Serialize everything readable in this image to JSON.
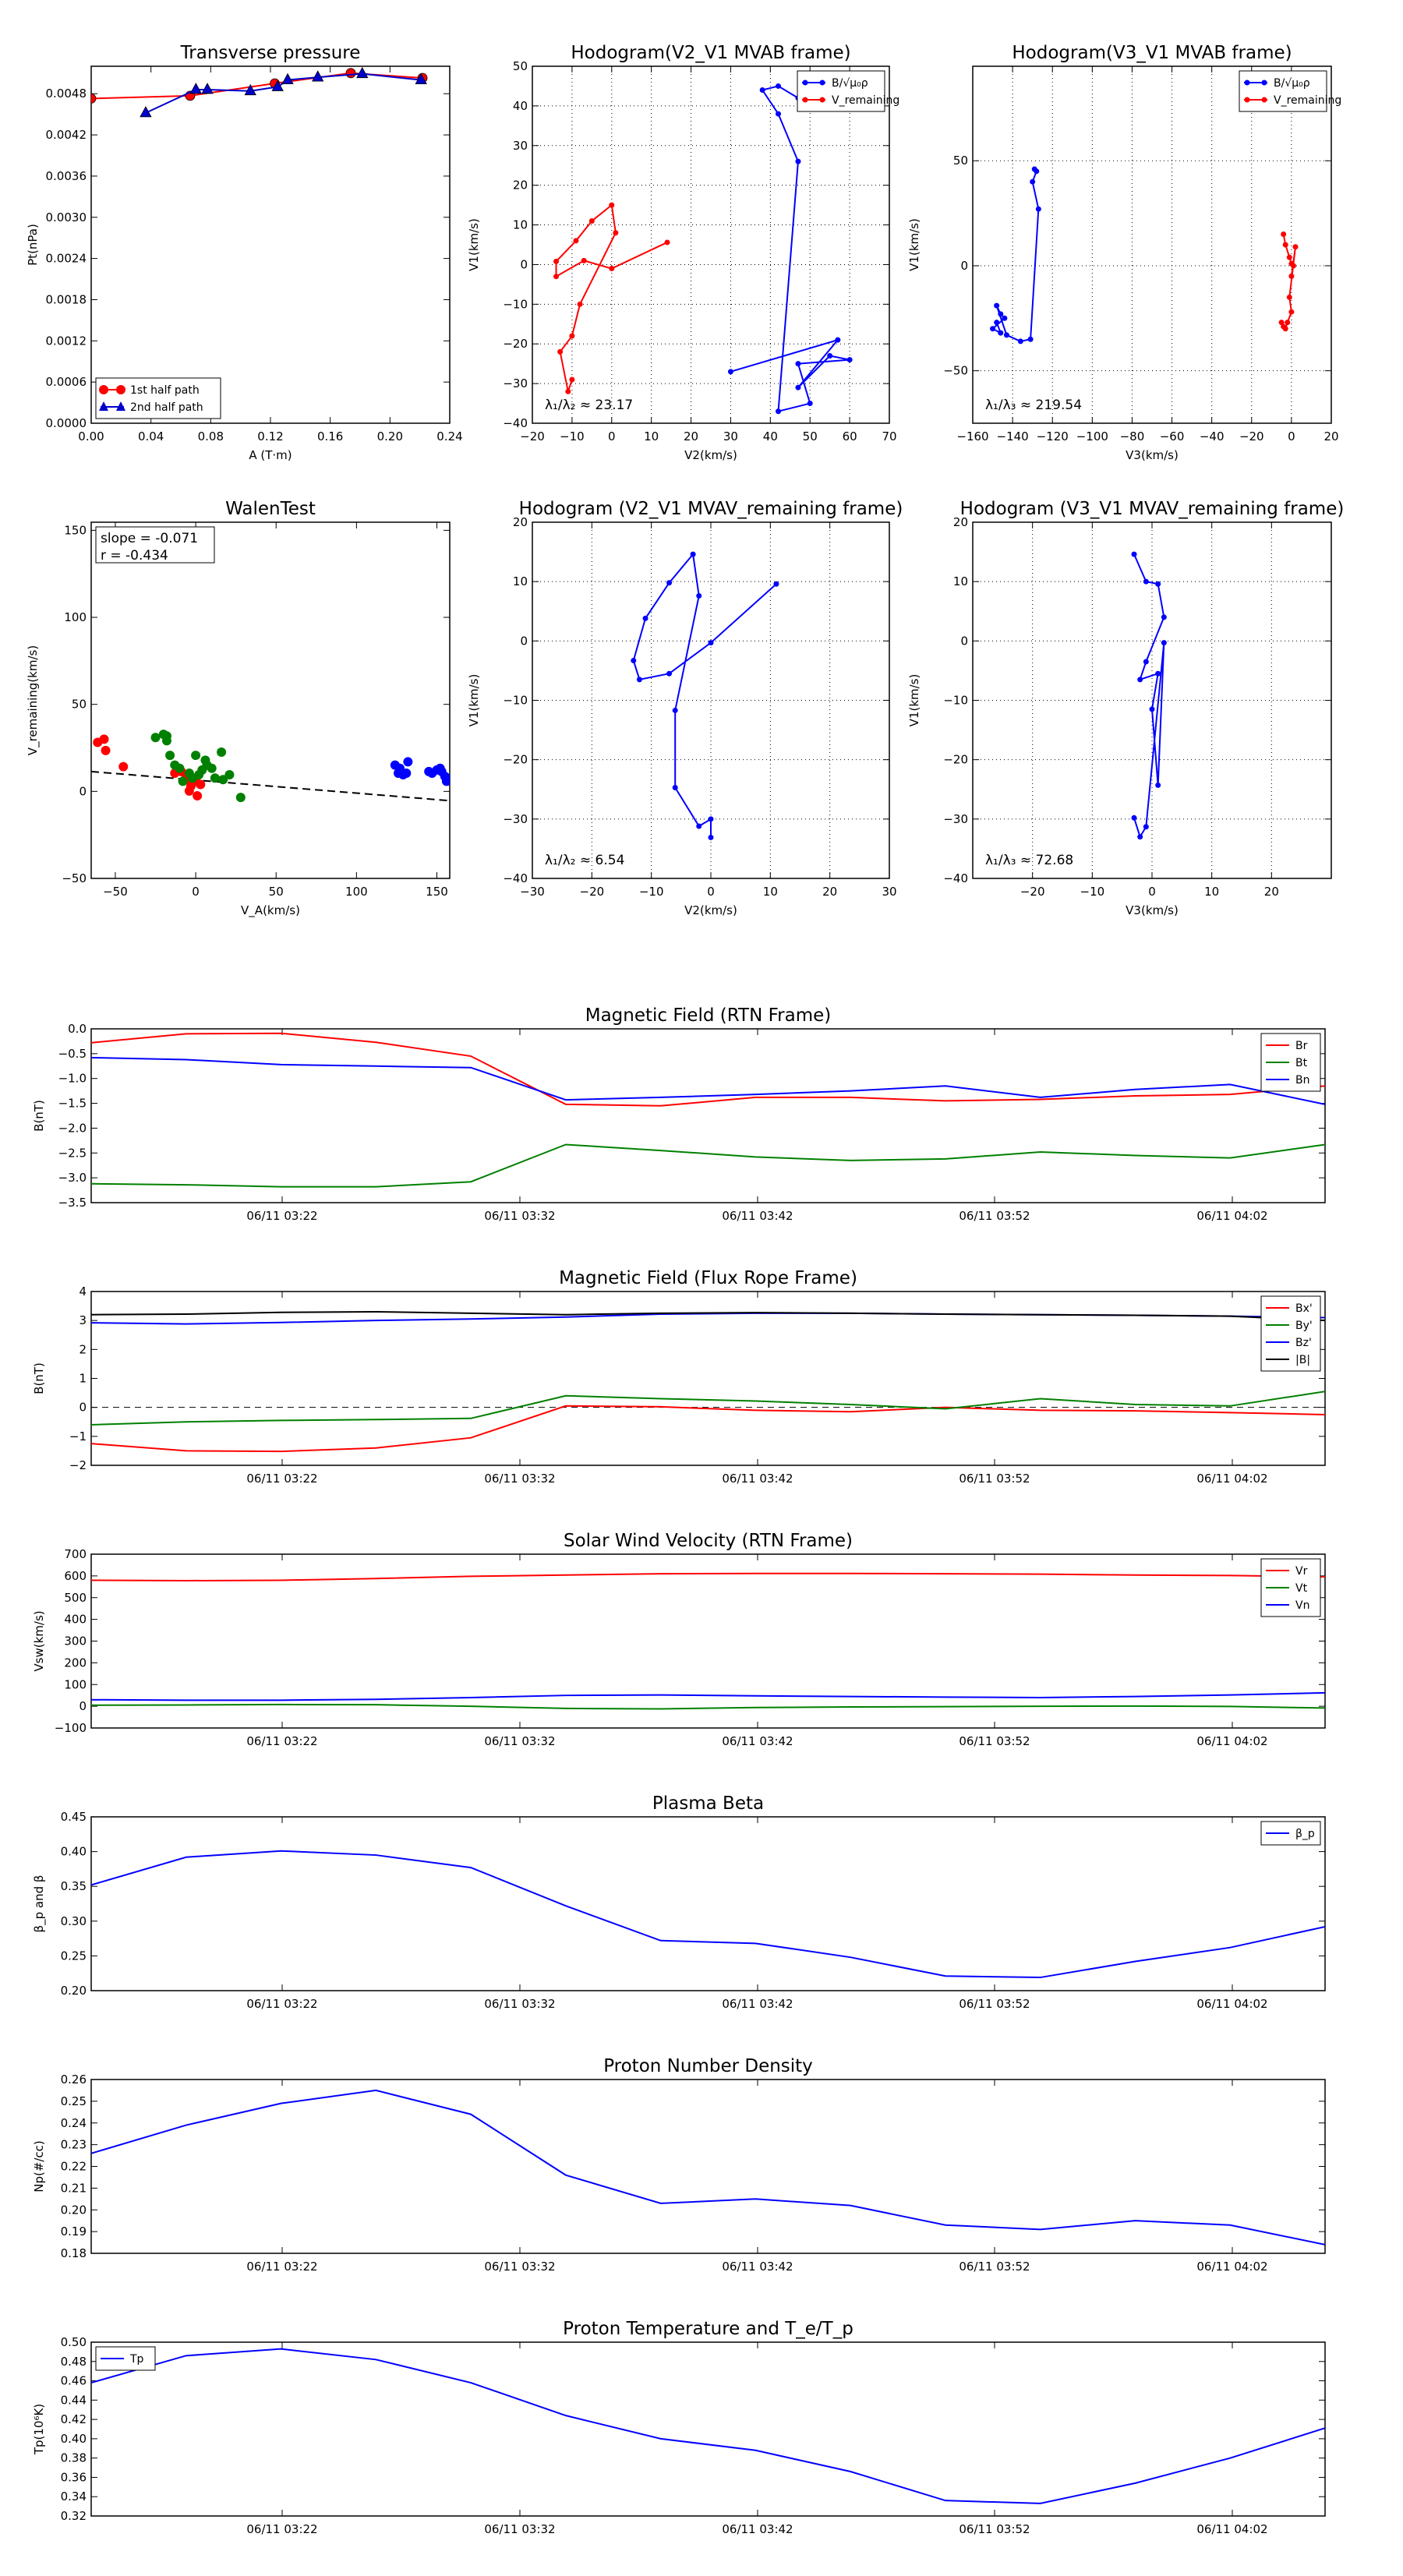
{
  "chart_data": [
    {
      "type": "line",
      "title": "Transverse pressure",
      "xlabel": "A (T·m)",
      "ylabel": "Pt(nPa)",
      "xlim": [
        0,
        0.25
      ],
      "ylim": [
        0,
        0.0052
      ],
      "xticks": [
        "0.00",
        "0.04",
        "0.08",
        "0.12",
        "0.16",
        "0.20",
        "0.24"
      ],
      "yticks": [
        "0.0000",
        "0.0006",
        "0.0012",
        "0.0018",
        "0.0024",
        "0.0030",
        "0.0036",
        "0.0042",
        "0.0048"
      ],
      "legend_position": "lower-left",
      "series": [
        {
          "name": "1st half path",
          "color": "#ff0000",
          "marker": "circle",
          "x": [
            0.0,
            0.069,
            0.128,
            0.181,
            0.231
          ],
          "y": [
            0.00473,
            0.00477,
            0.00495,
            0.0051,
            0.00503
          ]
        },
        {
          "name": "2nd half path",
          "color": "#0000cc",
          "marker": "triangle",
          "x": [
            0.038,
            0.073,
            0.081,
            0.111,
            0.13,
            0.137,
            0.158,
            0.189,
            0.23
          ],
          "y": [
            0.00452,
            0.00486,
            0.00486,
            0.00484,
            0.0049,
            0.005,
            0.00504,
            0.00509,
            0.005
          ]
        }
      ]
    },
    {
      "type": "line",
      "title": "Hodogram(V2_V1 MVAB frame)",
      "xlabel": "V2(km/s)",
      "ylabel": "V1(km/s)",
      "xlim": [
        -20,
        70
      ],
      "ylim": [
        -40,
        50
      ],
      "xticks": [
        "−20",
        "−10",
        "0",
        "10",
        "20",
        "30",
        "40",
        "50",
        "60",
        "70"
      ],
      "yticks": [
        "−40",
        "−30",
        "−20",
        "−10",
        "0",
        "10",
        "20",
        "30",
        "40",
        "50"
      ],
      "legend_position": "top-right",
      "annotation": "λ₁/λ₂ ≈ 23.17",
      "series": [
        {
          "name": "B/√μ₀ρ",
          "color": "#0000ff",
          "x": [
            30,
            57,
            47,
            55,
            60,
            47,
            50,
            42,
            47,
            42,
            38,
            42,
            47
          ],
          "y": [
            -27,
            -19,
            -31,
            -23,
            -24,
            -25,
            -35,
            -37,
            26,
            38,
            44,
            45,
            42
          ]
        },
        {
          "name": "V_remaining",
          "color": "#ff0000",
          "x": [
            14,
            0,
            -7,
            -14,
            -14,
            -9,
            -5,
            0,
            1,
            -8,
            -10,
            -13,
            -11,
            -10
          ],
          "y": [
            5.6,
            -1,
            1,
            -3,
            0.8,
            6,
            11,
            15,
            8,
            -10,
            -18,
            -22,
            -32,
            -29
          ]
        }
      ]
    },
    {
      "type": "line",
      "title": "Hodogram(V3_V1 MVAB frame)",
      "xlabel": "V3(km/s)",
      "ylabel": "V1(km/s)",
      "xlim": [
        -160,
        20
      ],
      "ylim": [
        -75,
        95
      ],
      "xticks": [
        "−160",
        "−140",
        "−120",
        "−100",
        "−80",
        "−60",
        "−40",
        "−20",
        "0",
        "20"
      ],
      "yticks": [
        "−50",
        "0",
        "50"
      ],
      "legend_position": "top-right",
      "annotation": "λ₁/λ₃ ≈ 219.54",
      "series": [
        {
          "name": "B/√μ₀ρ",
          "color": "#0000ff",
          "x": [
            -129,
            -128,
            -130,
            -127,
            -131,
            -136,
            -143,
            -148,
            -146,
            -144,
            -150,
            -146,
            -148
          ],
          "y": [
            46,
            45,
            40,
            27,
            -35,
            -36,
            -33,
            -19,
            -23,
            -25,
            -30,
            -32,
            -27
          ]
        },
        {
          "name": "V_remaining",
          "color": "#ff0000",
          "x": [
            -4,
            -3,
            -1,
            0,
            1,
            0,
            2,
            -1,
            0,
            -2,
            -3,
            -5,
            -4
          ],
          "y": [
            15,
            10,
            4,
            1,
            0,
            -5,
            9,
            -15,
            -22,
            -27,
            -30,
            -27,
            -29
          ]
        }
      ]
    },
    {
      "type": "scatter",
      "title": "WalenTest",
      "xlabel": "V_A(km/s)",
      "ylabel": "V_remaining(km/s)",
      "xlim": [
        -65,
        158
      ],
      "ylim": [
        -65,
        155
      ],
      "xticks": [
        "−50",
        "0",
        "50",
        "100",
        "150"
      ],
      "yticks": [
        "−50",
        "0",
        "50",
        "100",
        "150"
      ],
      "annotations": [
        "slope = -0.071",
        "r = -0.434"
      ],
      "fit_line": {
        "x": [
          -65,
          158
        ],
        "y": [
          1,
          -17
        ],
        "style": "dashed",
        "color": "#000000"
      },
      "series": [
        {
          "color": "#ff0000",
          "x": [
            -61,
            -57,
            -56,
            -45,
            -13,
            -9,
            -5,
            -4,
            0,
            -6,
            -3,
            1,
            3
          ],
          "y": [
            19,
            21,
            14,
            4,
            0,
            1,
            -4,
            -11,
            -5,
            -1,
            -8,
            -14,
            -7
          ]
        },
        {
          "color": "#008000",
          "x": [
            -25,
            -20,
            -18,
            -18,
            -16,
            -13,
            -10,
            -8,
            -4,
            -2,
            0,
            2,
            4,
            6,
            7,
            10,
            12,
            16,
            17,
            21,
            28
          ],
          "y": [
            22,
            24,
            23,
            20,
            11,
            5,
            3,
            -5,
            0,
            -3,
            11,
            -1,
            2,
            8,
            5,
            3,
            -3,
            13,
            -4,
            -1,
            -15
          ]
        },
        {
          "color": "#0000ff",
          "x": [
            124,
            126,
            127,
            129,
            131,
            132,
            145,
            147,
            150,
            152,
            153,
            155,
            156,
            157
          ],
          "y": [
            5,
            0,
            3,
            -1,
            0,
            7,
            1,
            0,
            2,
            3,
            1,
            -2,
            -5,
            -4
          ]
        }
      ]
    },
    {
      "type": "line",
      "title": "Hodogram (V2_V1 MVAV_remaining frame)",
      "xlabel": "V2(km/s)",
      "ylabel": "V1(km/s)",
      "xlim": [
        -30,
        30
      ],
      "ylim": [
        -40,
        20
      ],
      "xticks": [
        "−30",
        "−20",
        "−10",
        "0",
        "10",
        "20",
        "30"
      ],
      "yticks": [
        "−40",
        "−30",
        "−20",
        "−10",
        "0",
        "10",
        "20"
      ],
      "annotation": "λ₁/λ₂ ≈ 6.54",
      "series": [
        {
          "color": "#0000ff",
          "x": [
            11,
            0,
            -7,
            -12,
            -13,
            -11,
            -7,
            -3,
            -2,
            -6,
            -6,
            -2,
            0,
            0
          ],
          "y": [
            9.6,
            -0.3,
            -5.5,
            -6.5,
            -3.3,
            3.8,
            9.8,
            14.6,
            7.6,
            -11.7,
            -24.7,
            -31.2,
            -30,
            -33.1
          ]
        }
      ]
    },
    {
      "type": "line",
      "title": "Hodogram (V3_V1 MVAV_remaining frame)",
      "xlabel": "V3(km/s)",
      "ylabel": "V1(km/s)",
      "xlim": [
        -30,
        30
      ],
      "ylim": [
        -40,
        20
      ],
      "xticks": [
        "−20",
        "−10",
        "0",
        "10",
        "20"
      ],
      "yticks": [
        "−40",
        "−30",
        "−20",
        "−10",
        "0",
        "10",
        "20"
      ],
      "annotation": "λ₁/λ₃ ≈ 72.68",
      "series": [
        {
          "color": "#0000ff",
          "x": [
            -3,
            -1,
            1,
            2,
            -1,
            -2,
            1,
            0,
            1,
            2,
            -1,
            -2,
            -3
          ],
          "y": [
            14.6,
            10,
            9.6,
            4,
            -3.5,
            -6.5,
            -5.5,
            -11.5,
            -24.3,
            -0.3,
            -31.3,
            -33,
            -29.8
          ]
        }
      ]
    },
    {
      "type": "line",
      "title": "Magnetic Field (RTN Frame)",
      "ylabel": "B(nT)",
      "ylim": [
        -3.5,
        0.0
      ],
      "yticks": [
        "−3.5",
        "−3.0",
        "−2.5",
        "−2.0",
        "−1.5",
        "−1.0",
        "−0.5",
        "0.0"
      ],
      "x_tick_labels": [
        "06/11 03:22",
        "06/11 03:32",
        "06/11 03:42",
        "06/11 03:52",
        "06/11 04:02"
      ],
      "legend_position": "top-right",
      "series": [
        {
          "name": "Br",
          "color": "#ff0000",
          "y": [
            -0.28,
            -0.1,
            -0.09,
            -0.27,
            -0.55,
            -1.52,
            -1.55,
            -1.38,
            -1.38,
            -1.45,
            -1.42,
            -1.35,
            -1.32,
            -1.15
          ]
        },
        {
          "name": "Bt",
          "color": "#008000",
          "y": [
            -3.12,
            -3.14,
            -3.18,
            -3.18,
            -3.08,
            -2.33,
            -2.45,
            -2.58,
            -2.65,
            -2.62,
            -2.48,
            -2.55,
            -2.6,
            -2.33
          ]
        },
        {
          "name": "Bn",
          "color": "#0000ff",
          "y": [
            -0.58,
            -0.62,
            -0.72,
            -0.75,
            -0.78,
            -1.43,
            -1.38,
            -1.32,
            -1.25,
            -1.15,
            -1.38,
            -1.22,
            -1.12,
            -1.52
          ]
        }
      ]
    },
    {
      "type": "line",
      "title": "Magnetic Field (Flux Rope Frame)",
      "ylabel": "B(nT)",
      "ylim": [
        -2,
        4
      ],
      "yticks": [
        "−2",
        "−1",
        "0",
        "1",
        "2",
        "3",
        "4"
      ],
      "x_tick_labels": [
        "06/11 03:22",
        "06/11 03:32",
        "06/11 03:42",
        "06/11 03:52",
        "06/11 04:02"
      ],
      "legend_position": "top-right",
      "series": [
        {
          "name": "Bx'",
          "color": "#ff0000",
          "y": [
            -1.25,
            -1.5,
            -1.52,
            -1.4,
            -1.05,
            0.05,
            0.02,
            -0.1,
            -0.15,
            0.0,
            -0.1,
            -0.12,
            -0.18,
            -0.25
          ]
        },
        {
          "name": "By'",
          "color": "#008000",
          "y": [
            -0.6,
            -0.5,
            -0.45,
            -0.42,
            -0.38,
            0.4,
            0.3,
            0.22,
            0.1,
            -0.05,
            0.3,
            0.1,
            0.05,
            0.55
          ]
        },
        {
          "name": "Bz'",
          "color": "#0000ff",
          "y": [
            2.92,
            2.88,
            2.93,
            3.0,
            3.05,
            3.12,
            3.22,
            3.25,
            3.25,
            3.22,
            3.2,
            3.18,
            3.15,
            3.1
          ]
        },
        {
          "name": "|B|",
          "color": "#000000",
          "y": [
            3.2,
            3.22,
            3.28,
            3.3,
            3.25,
            3.2,
            3.25,
            3.27,
            3.25,
            3.22,
            3.2,
            3.18,
            3.15,
            3.0
          ]
        }
      ]
    },
    {
      "type": "line",
      "title": "Solar Wind Velocity (RTN Frame)",
      "ylabel": "Vsw(km/s)",
      "ylim": [
        -100,
        700
      ],
      "yticks": [
        "−100",
        "0",
        "100",
        "200",
        "300",
        "400",
        "500",
        "600",
        "700"
      ],
      "x_tick_labels": [
        "06/11 03:22",
        "06/11 03:32",
        "06/11 03:42",
        "06/11 03:52",
        "06/11 04:02"
      ],
      "legend_position": "top-right",
      "series": [
        {
          "name": "Vr",
          "color": "#ff0000",
          "y": [
            580,
            578,
            580,
            588,
            598,
            604,
            610,
            611,
            611,
            610,
            608,
            604,
            602,
            596
          ]
        },
        {
          "name": "Vt",
          "color": "#008000",
          "y": [
            5,
            6,
            8,
            7,
            0,
            -10,
            -12,
            -6,
            -3,
            -2,
            0,
            1,
            -1,
            -8
          ]
        },
        {
          "name": "Vn",
          "color": "#0000ff",
          "y": [
            30,
            28,
            28,
            32,
            40,
            50,
            52,
            48,
            45,
            42,
            40,
            45,
            52,
            62
          ]
        }
      ]
    },
    {
      "type": "line",
      "title": "Plasma Beta",
      "ylabel": "β_p and β",
      "ylim": [
        0.2,
        0.45
      ],
      "yticks": [
        "0.20",
        "0.25",
        "0.30",
        "0.35",
        "0.40",
        "0.45"
      ],
      "x_tick_labels": [
        "06/11 03:22",
        "06/11 03:32",
        "06/11 03:42",
        "06/11 03:52",
        "06/11 04:02"
      ],
      "legend_position": "top-right",
      "series": [
        {
          "name": "β_p",
          "color": "#0000ff",
          "y": [
            0.352,
            0.392,
            0.401,
            0.395,
            0.377,
            0.322,
            0.272,
            0.268,
            0.248,
            0.221,
            0.219,
            0.242,
            0.262,
            0.292
          ]
        }
      ]
    },
    {
      "type": "line",
      "title": "Proton Number Density",
      "ylabel": "Np(#/cc)",
      "ylim": [
        0.18,
        0.26
      ],
      "yticks": [
        "0.18",
        "0.19",
        "0.20",
        "0.21",
        "0.22",
        "0.23",
        "0.24",
        "0.25",
        "0.26"
      ],
      "x_tick_labels": [
        "06/11 03:22",
        "06/11 03:32",
        "06/11 03:42",
        "06/11 03:52",
        "06/11 04:02"
      ],
      "series": [
        {
          "color": "#0000ff",
          "y": [
            0.226,
            0.239,
            0.249,
            0.255,
            0.244,
            0.216,
            0.203,
            0.205,
            0.202,
            0.193,
            0.191,
            0.195,
            0.193,
            0.184
          ]
        }
      ]
    },
    {
      "type": "line",
      "title": "Proton Temperature and T_e/T_p",
      "ylabel": "Tp(10⁶K)",
      "ylim": [
        0.32,
        0.5
      ],
      "yticks": [
        "0.32",
        "0.34",
        "0.36",
        "0.38",
        "0.40",
        "0.42",
        "0.44",
        "0.46",
        "0.48",
        "0.50"
      ],
      "x_tick_labels": [
        "06/11 03:22",
        "06/11 03:32",
        "06/11 03:42",
        "06/11 03:52",
        "06/11 04:02"
      ],
      "legend_position": "top-left",
      "series": [
        {
          "name": "Tp",
          "color": "#0000ff",
          "y": [
            0.458,
            0.486,
            0.493,
            0.482,
            0.458,
            0.424,
            0.4,
            0.388,
            0.366,
            0.336,
            0.333,
            0.354,
            0.38,
            0.411
          ]
        }
      ]
    }
  ]
}
